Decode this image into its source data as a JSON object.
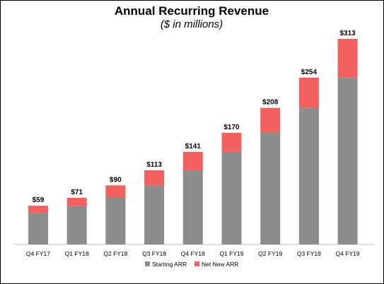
{
  "chart_data": {
    "type": "bar",
    "stacked": true,
    "title": "Annual Recurring Revenue",
    "subtitle": "($ in millions)",
    "categories": [
      "Q4 FY17",
      "Q1 FY18",
      "Q2 FY18",
      "Q3 FY18",
      "Q4 FY18",
      "Q1 FY19",
      "Q2 FY19",
      "Q3 FY19",
      "Q4 FY19"
    ],
    "totals_labels": [
      "$59",
      "$71",
      "$90",
      "$113",
      "$141",
      "$170",
      "$208",
      "$254",
      "$313"
    ],
    "series": [
      {
        "name": "Starting ARR",
        "color": "#8c8c8c",
        "values": [
          48,
          59,
          71,
          90,
          113,
          141,
          170,
          208,
          254
        ]
      },
      {
        "name": "Net New ARR",
        "color": "#f26060",
        "values": [
          11,
          12,
          19,
          23,
          28,
          29,
          38,
          46,
          59
        ]
      }
    ],
    "ylim": [
      0,
      313
    ],
    "grid": false,
    "legend": "bottom-center"
  }
}
